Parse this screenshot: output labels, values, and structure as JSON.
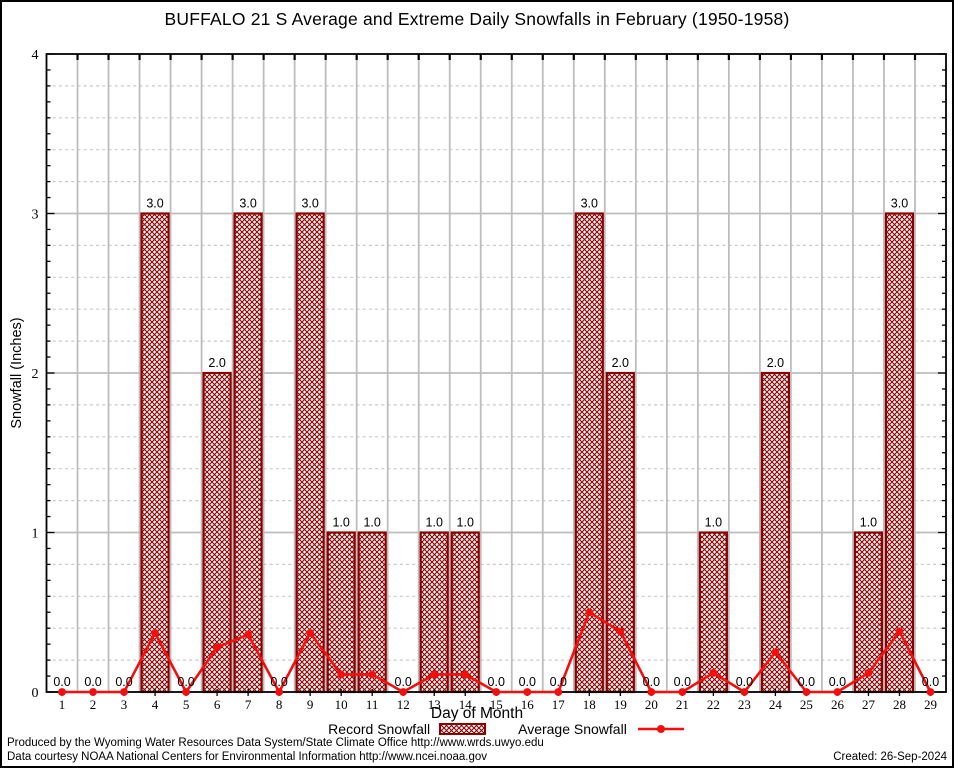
{
  "title": "BUFFALO 21 S Average and Extreme Daily Snowfalls in February (1950-1958)",
  "axes": {
    "xlabel": "Day of Month",
    "ylabel": "Snowfall (Inches)"
  },
  "legend": {
    "items": [
      {
        "label": "Record Snowfall",
        "swatch": "crosshatch-bar-swatch"
      },
      {
        "label": "Average Snowfall",
        "swatch": "red-line-marker-swatch"
      }
    ]
  },
  "footer": {
    "line1": "Produced by the Wyoming Water Resources Data System/State Climate Office http://www.wrds.uwyo.edu",
    "line2": "Data courtesy NOAA National Centers for Environmental Information http://www.ncei.noaa.gov",
    "created": "Created: 26-Sep-2024"
  },
  "colors": {
    "bar_border": "#8b0000",
    "bar_hatch": "#8b0000",
    "avg_line": "#f40f0f",
    "grid_major": "#bdbdbd",
    "grid_minor": "#c9c9c9",
    "frame": "#000000"
  },
  "chart_data": {
    "type": "bar",
    "title": "BUFFALO 21 S Average and Extreme Daily Snowfalls in February (1950-1958)",
    "xlabel": "Day of Month",
    "ylabel": "Snowfall (Inches)",
    "categories": [
      1,
      2,
      3,
      4,
      5,
      6,
      7,
      8,
      9,
      10,
      11,
      12,
      13,
      14,
      15,
      16,
      17,
      18,
      19,
      20,
      21,
      22,
      23,
      24,
      25,
      26,
      27,
      28,
      29
    ],
    "series": [
      {
        "name": "Record Snowfall",
        "type": "bar",
        "values": [
          0,
          0,
          0,
          3,
          0,
          2,
          3,
          0,
          3,
          1,
          1,
          0,
          1,
          1,
          0,
          0,
          0,
          3,
          2,
          0,
          0,
          1,
          0,
          2,
          0,
          0,
          1,
          3,
          0
        ],
        "value_labels": [
          "0.0",
          "0.0",
          "0.0",
          "3.0",
          "0.0",
          "2.0",
          "3.0",
          "0.0",
          "3.0",
          "1.0",
          "1.0",
          "0.0",
          "1.0",
          "1.0",
          "0.0",
          "0.0",
          "0.0",
          "3.0",
          "2.0",
          "0.0",
          "0.0",
          "1.0",
          "0.0",
          "2.0",
          "0.0",
          "0.0",
          "1.0",
          "3.0",
          "0.0"
        ]
      },
      {
        "name": "Average Snowfall",
        "type": "line",
        "values": [
          0,
          0,
          0,
          0.37,
          0,
          0.28,
          0.36,
          0,
          0.37,
          0.11,
          0.11,
          0,
          0.11,
          0.11,
          0,
          0,
          0,
          0.5,
          0.38,
          0,
          0,
          0.12,
          0,
          0.25,
          0,
          0,
          0.12,
          0.38,
          0
        ]
      }
    ],
    "ylim": [
      0,
      4
    ],
    "yticks": [
      0,
      1,
      2,
      3,
      4
    ],
    "minor_grid_step": 0.2,
    "grid": true,
    "legend_position": "bottom"
  }
}
